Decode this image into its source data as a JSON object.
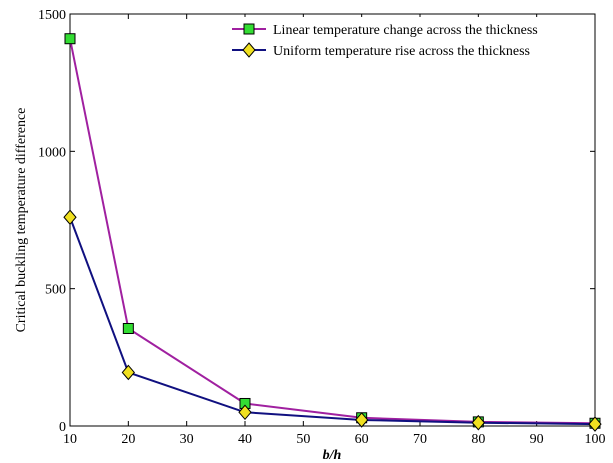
{
  "chart_data": {
    "type": "line",
    "title": "",
    "xlabel": "b/h",
    "ylabel": "Critical buckling temperature difference",
    "xlim": [
      10,
      100
    ],
    "ylim": [
      0,
      1500
    ],
    "xticks": [
      "10",
      "20",
      "30",
      "40",
      "50",
      "60",
      "70",
      "80",
      "90",
      "100"
    ],
    "yticks": [
      "0",
      "500",
      "1000",
      "1500"
    ],
    "grid": false,
    "legend_position": "top-right",
    "series": [
      {
        "name": "Linear temperature change across the thickness",
        "color": "#a020a0",
        "marker": "square",
        "marker_color": "#33dd33",
        "x": [
          10,
          20,
          40,
          60,
          80,
          100
        ],
        "y": [
          1410,
          355,
          82,
          30,
          15,
          10
        ]
      },
      {
        "name": "Uniform temperature rise across the thickness",
        "color": "#101080",
        "marker": "diamond",
        "marker_color": "#f0e020",
        "x": [
          10,
          20,
          40,
          60,
          80,
          100
        ],
        "y": [
          760,
          195,
          50,
          22,
          12,
          7
        ]
      }
    ]
  }
}
